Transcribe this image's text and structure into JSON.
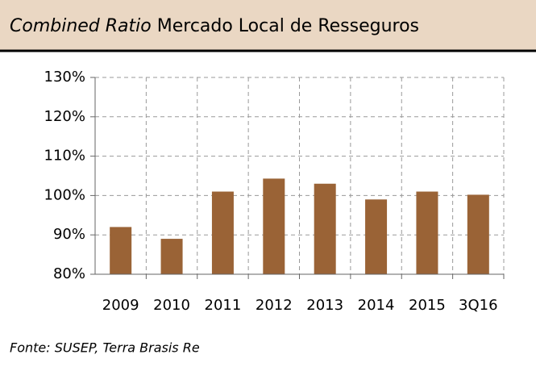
{
  "chart_data": {
    "type": "bar",
    "title_italic": "Combined Ratio",
    "title": "Mercado Local de Resseguros",
    "categories": [
      "2009",
      "2010",
      "2011",
      "2012",
      "2013",
      "2014",
      "2015",
      "3Q16"
    ],
    "values": [
      92,
      89,
      101,
      104.3,
      103,
      99,
      101,
      100.2
    ],
    "color": "#9a6336",
    "ylim": [
      80,
      130
    ],
    "yticks": [
      {
        "value": 80,
        "label": "80%"
      },
      {
        "value": 90,
        "label": "90%"
      },
      {
        "value": 100,
        "label": "100%"
      },
      {
        "value": 110,
        "label": "110%"
      },
      {
        "value": 120,
        "label": "120%"
      },
      {
        "value": 130,
        "label": "130%"
      }
    ],
    "grid": true,
    "source": "Fonte: SUSEP, Terra Brasis Re"
  }
}
